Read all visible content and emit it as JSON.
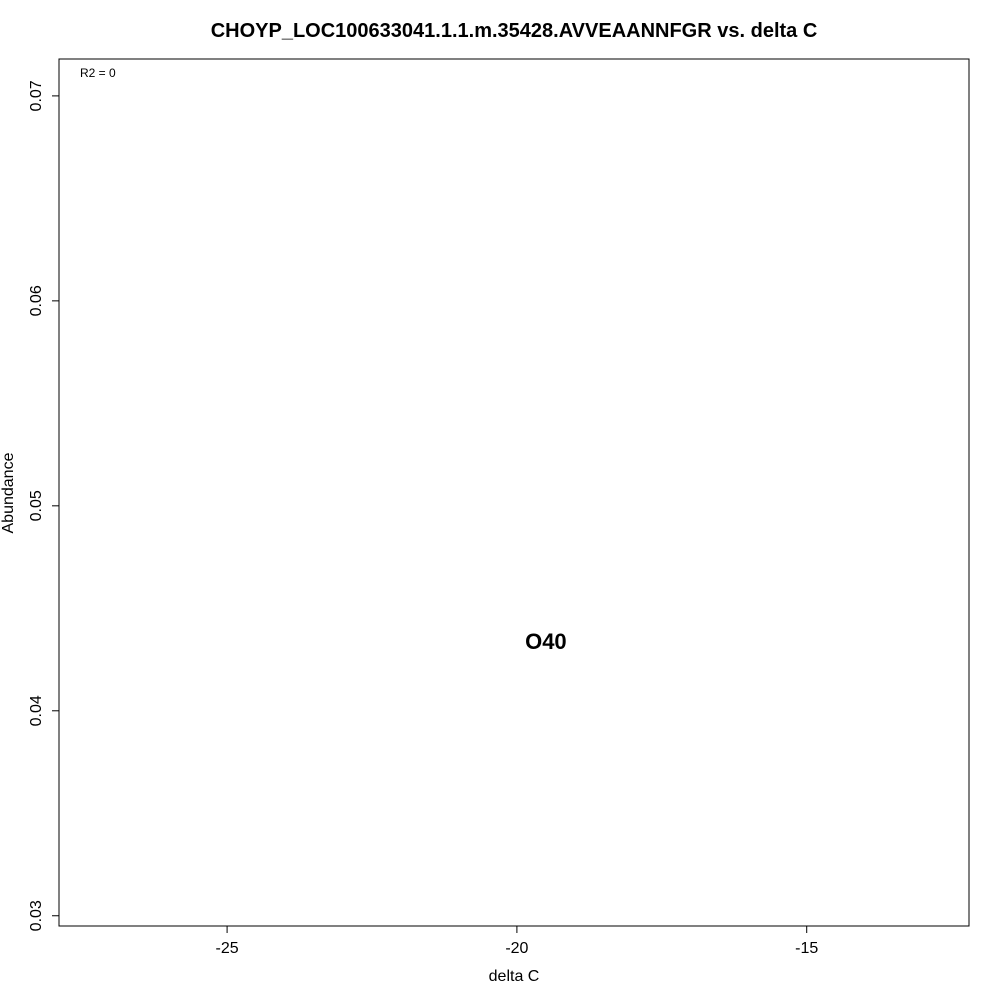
{
  "chart_data": {
    "type": "scatter",
    "title": "CHOYP_LOC100633041.1.1.m.35428.AVVEAANNFGR vs. delta C",
    "xlabel": "delta C",
    "ylabel": "Abundance",
    "xlim": [
      -27.9,
      -12.2
    ],
    "ylim": [
      0.0295,
      0.0718
    ],
    "x_ticks": [
      -25,
      -20,
      -15
    ],
    "y_ticks": [
      0.03,
      0.04,
      0.05,
      0.06,
      0.07
    ],
    "x_tick_labels": [
      "-25",
      "-20",
      "-15"
    ],
    "y_tick_labels": [
      "0.03",
      "0.04",
      "0.05",
      "0.06",
      "0.07"
    ],
    "annotation": "R2 = 0",
    "points": [
      {
        "x": -19.5,
        "y": 0.0433,
        "label": "O40"
      }
    ],
    "grid": false,
    "legend": "none"
  }
}
